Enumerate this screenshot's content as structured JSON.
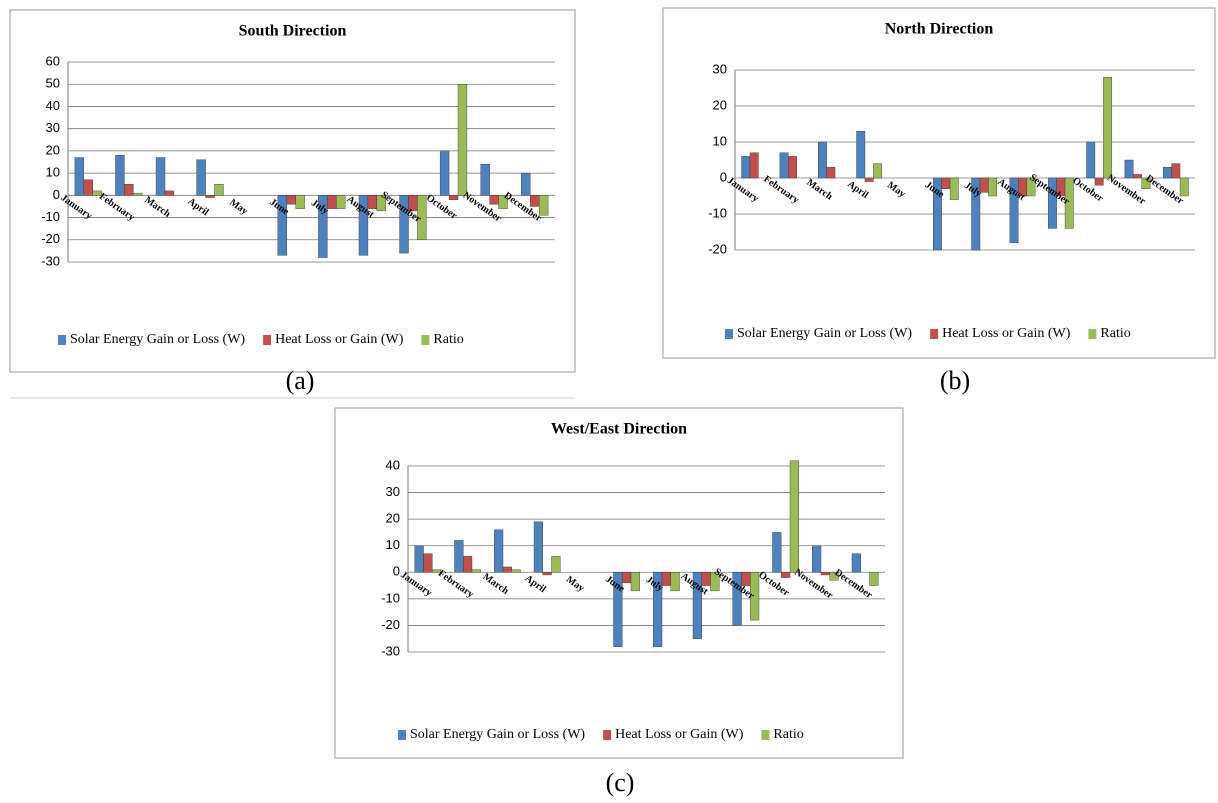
{
  "chart_data": [
    {
      "type": "bar",
      "title": "South Direction",
      "caption": "(a)",
      "categories": [
        "January",
        "February",
        "March",
        "April",
        "May",
        "June",
        "July",
        "August",
        "September",
        "October",
        "November",
        "December"
      ],
      "series": [
        {
          "name": "Solar Energy Gain or Loss (W)",
          "color": "#4f81bd",
          "values": [
            17,
            18,
            17,
            16,
            0,
            -27,
            -28,
            -27,
            -26,
            20,
            14,
            10
          ]
        },
        {
          "name": "Heat Loss or Gain (W)",
          "color": "#c0504d",
          "values": [
            7,
            5,
            2,
            -1,
            0,
            -4,
            -6,
            -6,
            -7,
            -2,
            -4,
            -5
          ]
        },
        {
          "name": "Ratio",
          "color": "#9bbb59",
          "values": [
            2,
            1,
            0,
            5,
            0,
            -6,
            -6,
            -7,
            -20,
            50,
            -6,
            -9
          ]
        }
      ],
      "ylim": [
        -30,
        60
      ],
      "yticks": [
        -30,
        -20,
        -10,
        0,
        10,
        20,
        30,
        40,
        50,
        60
      ],
      "grid": true
    },
    {
      "type": "bar",
      "title": "North Direction",
      "caption": "(b)",
      "categories": [
        "January",
        "February",
        "March",
        "April",
        "May",
        "June",
        "July",
        "August",
        "September",
        "October",
        "November",
        "December"
      ],
      "series": [
        {
          "name": "Solar Energy Gain or Loss (W)",
          "color": "#4f81bd",
          "values": [
            6,
            7,
            10,
            13,
            0,
            -20,
            -20,
            -18,
            -14,
            10,
            5,
            3
          ]
        },
        {
          "name": "Heat Loss or Gain (W)",
          "color": "#c0504d",
          "values": [
            7,
            6,
            3,
            -1,
            0,
            -3,
            -4,
            -5,
            -5,
            -2,
            1,
            4
          ]
        },
        {
          "name": "Ratio",
          "color": "#9bbb59",
          "values": [
            0,
            0,
            0,
            4,
            0,
            -6,
            -5,
            -5,
            -14,
            28,
            -3,
            -5
          ]
        }
      ],
      "ylim": [
        -20,
        30
      ],
      "yticks": [
        -20,
        -10,
        0,
        10,
        20,
        30
      ],
      "grid": true
    },
    {
      "type": "bar",
      "title": "West/East Direction",
      "caption": "(c)",
      "categories": [
        "January",
        "February",
        "March",
        "April",
        "May",
        "June",
        "July",
        "August",
        "September",
        "October",
        "November",
        "December"
      ],
      "series": [
        {
          "name": "Solar Energy Gain or Loss (W)",
          "color": "#4f81bd",
          "values": [
            10,
            12,
            16,
            19,
            0,
            -28,
            -28,
            -25,
            -20,
            15,
            10,
            7
          ]
        },
        {
          "name": "Heat Loss or Gain (W)",
          "color": "#c0504d",
          "values": [
            7,
            6,
            2,
            -1,
            0,
            -4,
            -5,
            -5,
            -5,
            -2,
            -1,
            0
          ]
        },
        {
          "name": "Ratio",
          "color": "#9bbb59",
          "values": [
            1,
            1,
            1,
            6,
            0,
            -7,
            -7,
            -7,
            -18,
            42,
            -3,
            -5
          ]
        }
      ],
      "ylim": [
        -30,
        40
      ],
      "yticks": [
        -30,
        -20,
        -10,
        0,
        10,
        20,
        30,
        40
      ],
      "grid": true
    }
  ]
}
